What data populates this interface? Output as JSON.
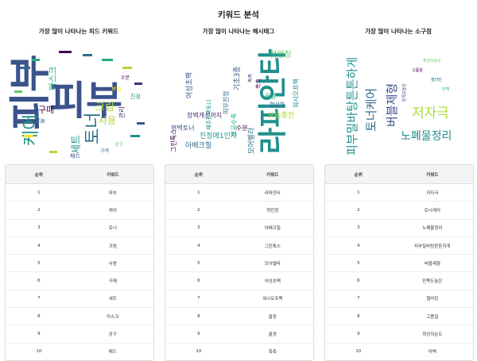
{
  "title": "키워드 분석",
  "columns": [
    {
      "heading": "가장 많이 나타나는 피드 키워드",
      "table_headers": [
        "순위",
        "키워드"
      ],
      "rows": [
        [
          "1",
          "피부"
        ],
        [
          "2",
          "케어"
        ],
        [
          "3",
          "토너"
        ],
        [
          "4",
          "크림"
        ],
        [
          "5",
          "사용"
        ],
        [
          "6",
          "구매"
        ],
        [
          "7",
          "세트"
        ],
        [
          "8",
          "마스크"
        ],
        [
          "9",
          "공구"
        ],
        [
          "10",
          "패드"
        ]
      ],
      "cloud_words": [
        "피부",
        "케어",
        "토너",
        "크림",
        "사용",
        "세트",
        "구매",
        "마스크",
        "관리",
        "패드",
        "공구",
        "가격",
        "보습",
        "진정",
        "수분",
        "오늘"
      ]
    },
    {
      "heading": "가장 많이 나타나는 해시태그",
      "table_headers": [
        "순위",
        "키워드"
      ],
      "rows": [
        [
          "1",
          "라피안타"
        ],
        [
          "2",
          "첫런칭"
        ],
        [
          "3",
          "아베크힐"
        ],
        [
          "4",
          "그린톡스"
        ],
        [
          "5",
          "모어벨라"
        ],
        [
          "6",
          "어성초팩"
        ],
        [
          "7",
          "워시오프팩"
        ],
        [
          "8",
          "꿀광"
        ],
        [
          "9",
          "꿀광"
        ],
        [
          "10",
          "촉촉"
        ]
      ],
      "cloud_words": [
        "라피안타",
        "첫런칭",
        "아베크힐",
        "그린톡스",
        "모어벨라",
        "어성초팩",
        "워시오프팩",
        "꿀광",
        "촉촉",
        "보습충전",
        "진정에1인자",
        "장벽개선까지",
        "피부진정",
        "향산하",
        "기초3종",
        "수분",
        "편백토너",
        "재주편백토너",
        "모공수축",
        "촉촉"
      ]
    },
    {
      "heading": "가장 많이 나타나는 소구점",
      "table_headers": [
        "순위",
        "키워드"
      ],
      "rows": [
        [
          "1",
          "저자극"
        ],
        [
          "2",
          "토너케어"
        ],
        [
          "3",
          "노폐물정리"
        ],
        [
          "4",
          "피부밀바탕튼튼하게"
        ],
        [
          "5",
          "버블제형"
        ],
        [
          "6",
          "만족도높은"
        ],
        [
          "7",
          "젤라틴"
        ],
        [
          "8",
          "고품질"
        ],
        [
          "9",
          "최상의순도"
        ],
        [
          "10",
          "미백"
        ]
      ],
      "cloud_words": [
        "피부밀바탕튼튼하게",
        "토너케어",
        "버블제형",
        "저자극",
        "노폐물정리",
        "고품질",
        "젤라틴",
        "만족도높은",
        "미백",
        "최상의순도"
      ]
    }
  ],
  "colors": {
    "header_bg": "#f3f4f6",
    "border": "#d9dde3",
    "cloud_palette": [
      "#3b528b",
      "#21908d",
      "#5dc962",
      "#440154",
      "#2c728e",
      "#27ad81",
      "#aadc32",
      "#472d7b",
      "#fde725",
      "#31688e"
    ]
  }
}
